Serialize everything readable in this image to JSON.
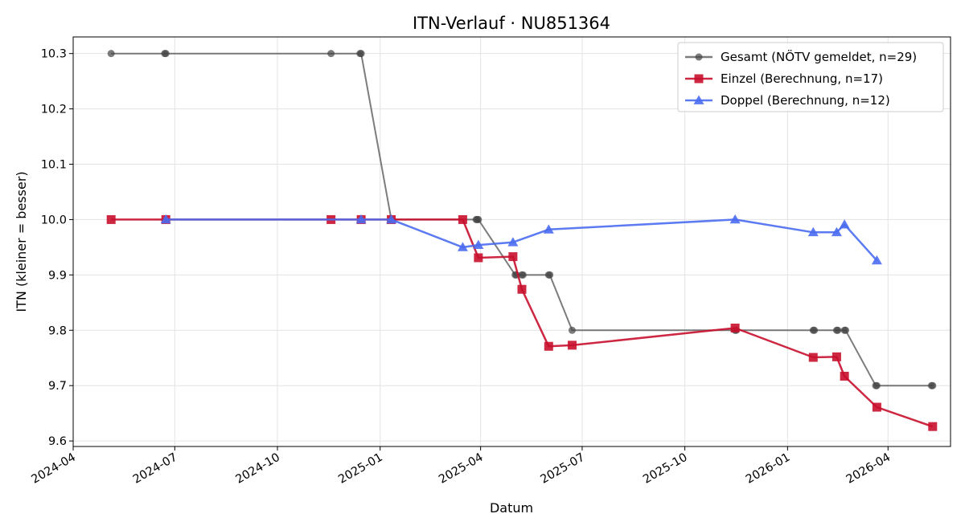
{
  "chart_data": {
    "type": "line",
    "title": "ITN-Verlauf · NU851364",
    "xlabel": "Datum",
    "ylabel": "ITN  (kleiner = besser)",
    "xlim": [
      "2024-04-01",
      "2026-05-27"
    ],
    "ylim": [
      9.59,
      10.33
    ],
    "yticks": [
      9.6,
      9.7,
      9.8,
      9.9,
      10.0,
      10.1,
      10.2,
      10.3
    ],
    "ytick_labels": [
      "9.6",
      "9.7",
      "9.8",
      "9.9",
      "10.0",
      "10.1",
      "10.2",
      "10.3"
    ],
    "xticks": [
      "2024-04-01",
      "2024-07-01",
      "2024-10-01",
      "2025-01-01",
      "2025-04-01",
      "2025-07-01",
      "2025-10-01",
      "2026-01-01",
      "2026-04-01"
    ],
    "xtick_labels": [
      "2024-04",
      "2024-07",
      "2024-10",
      "2025-01",
      "2025-04",
      "2025-07",
      "2025-10",
      "2026-01",
      "2026-04"
    ],
    "grid": true,
    "legend_position": "top-right",
    "series": [
      {
        "name": "Gesamt (NÖTV gemeldet, n=29)",
        "color": "#444444",
        "marker": "circle",
        "points": [
          [
            "2024-05-05",
            10.3
          ],
          [
            "2024-06-22",
            10.3
          ],
          [
            "2024-06-23",
            10.3
          ],
          [
            "2024-11-18",
            10.3
          ],
          [
            "2024-12-14",
            10.3
          ],
          [
            "2024-12-15",
            10.3
          ],
          [
            "2025-01-11",
            10.0
          ],
          [
            "2025-03-29",
            10.0
          ],
          [
            "2025-03-30",
            10.0
          ],
          [
            "2025-05-02",
            9.9
          ],
          [
            "2025-05-08",
            9.9
          ],
          [
            "2025-05-09",
            9.9
          ],
          [
            "2025-06-01",
            9.9
          ],
          [
            "2025-06-02",
            9.9
          ],
          [
            "2025-06-22",
            9.8
          ],
          [
            "2025-11-15",
            9.8
          ],
          [
            "2025-11-16",
            9.8
          ],
          [
            "2026-01-24",
            9.8
          ],
          [
            "2026-01-25",
            9.8
          ],
          [
            "2026-02-14",
            9.8
          ],
          [
            "2026-02-15",
            9.8
          ],
          [
            "2026-02-21",
            9.8
          ],
          [
            "2026-02-22",
            9.8
          ],
          [
            "2026-03-21",
            9.7
          ],
          [
            "2026-03-22",
            9.7
          ],
          [
            "2026-05-10",
            9.7
          ],
          [
            "2026-05-11",
            9.7
          ],
          [
            "2025-03-28",
            10.0
          ],
          [
            "2025-05-03",
            9.9
          ]
        ]
      },
      {
        "name": "Einzel (Berechnung, n=17)",
        "color": "#c8102e",
        "marker": "square",
        "points": [
          [
            "2024-05-05",
            10.0
          ],
          [
            "2024-06-23",
            10.0
          ],
          [
            "2024-11-18",
            10.0
          ],
          [
            "2024-12-15",
            10.0
          ],
          [
            "2025-01-11",
            10.0
          ],
          [
            "2025-03-16",
            10.0
          ],
          [
            "2025-03-30",
            9.931
          ],
          [
            "2025-04-30",
            9.933
          ],
          [
            "2025-05-08",
            9.874
          ],
          [
            "2025-06-01",
            9.771
          ],
          [
            "2025-06-22",
            9.773
          ],
          [
            "2025-11-15",
            9.804
          ],
          [
            "2026-01-24",
            9.751
          ],
          [
            "2026-02-14",
            9.752
          ],
          [
            "2026-02-21",
            9.717
          ],
          [
            "2026-03-22",
            9.661
          ],
          [
            "2026-05-11",
            9.626
          ]
        ]
      },
      {
        "name": "Doppel (Berechnung, n=12)",
        "color": "#4a6cf0",
        "marker": "triangle",
        "points": [
          [
            "2024-06-23",
            10.0
          ],
          [
            "2024-12-15",
            10.0
          ],
          [
            "2025-01-11",
            10.0
          ],
          [
            "2025-03-16",
            9.95
          ],
          [
            "2025-03-30",
            9.954
          ],
          [
            "2025-04-30",
            9.959
          ],
          [
            "2025-06-01",
            9.982
          ],
          [
            "2025-11-15",
            10.0
          ],
          [
            "2026-01-24",
            9.977
          ],
          [
            "2026-02-14",
            9.977
          ],
          [
            "2026-02-21",
            9.991
          ],
          [
            "2026-03-22",
            9.926
          ]
        ]
      }
    ]
  }
}
